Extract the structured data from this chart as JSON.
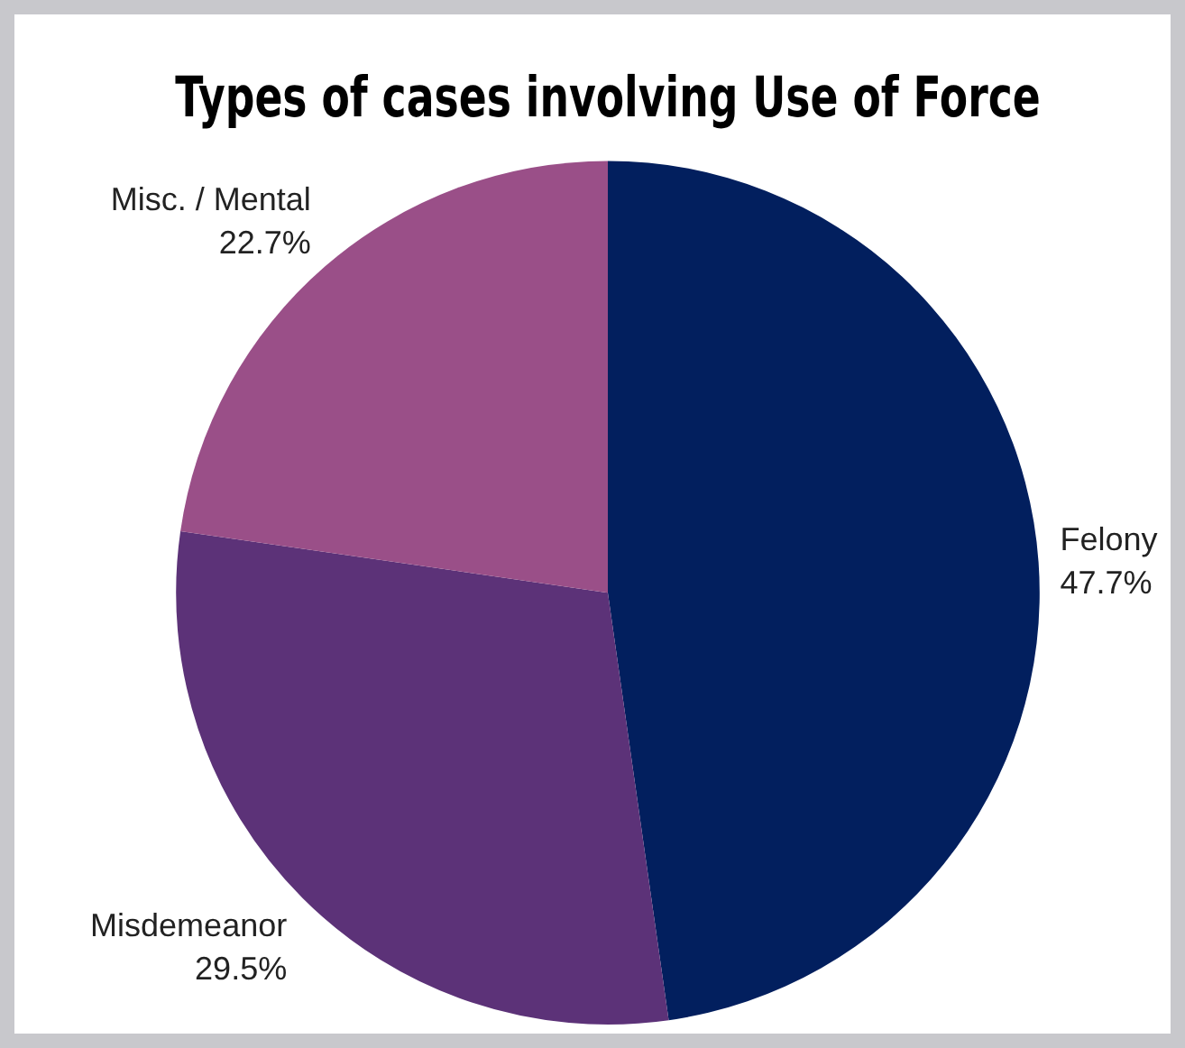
{
  "chart_data": {
    "type": "pie",
    "title": "Types of cases involving Use of Force",
    "categories": [
      "Felony",
      "Misdemeanor",
      "Misc. / Mental"
    ],
    "values": [
      47.7,
      29.5,
      22.7
    ],
    "colors": [
      "#021f5e",
      "#5c3278",
      "#9a4f88"
    ],
    "value_labels": [
      "47.7%",
      "29.5%",
      "22.7%"
    ],
    "legend": false
  }
}
